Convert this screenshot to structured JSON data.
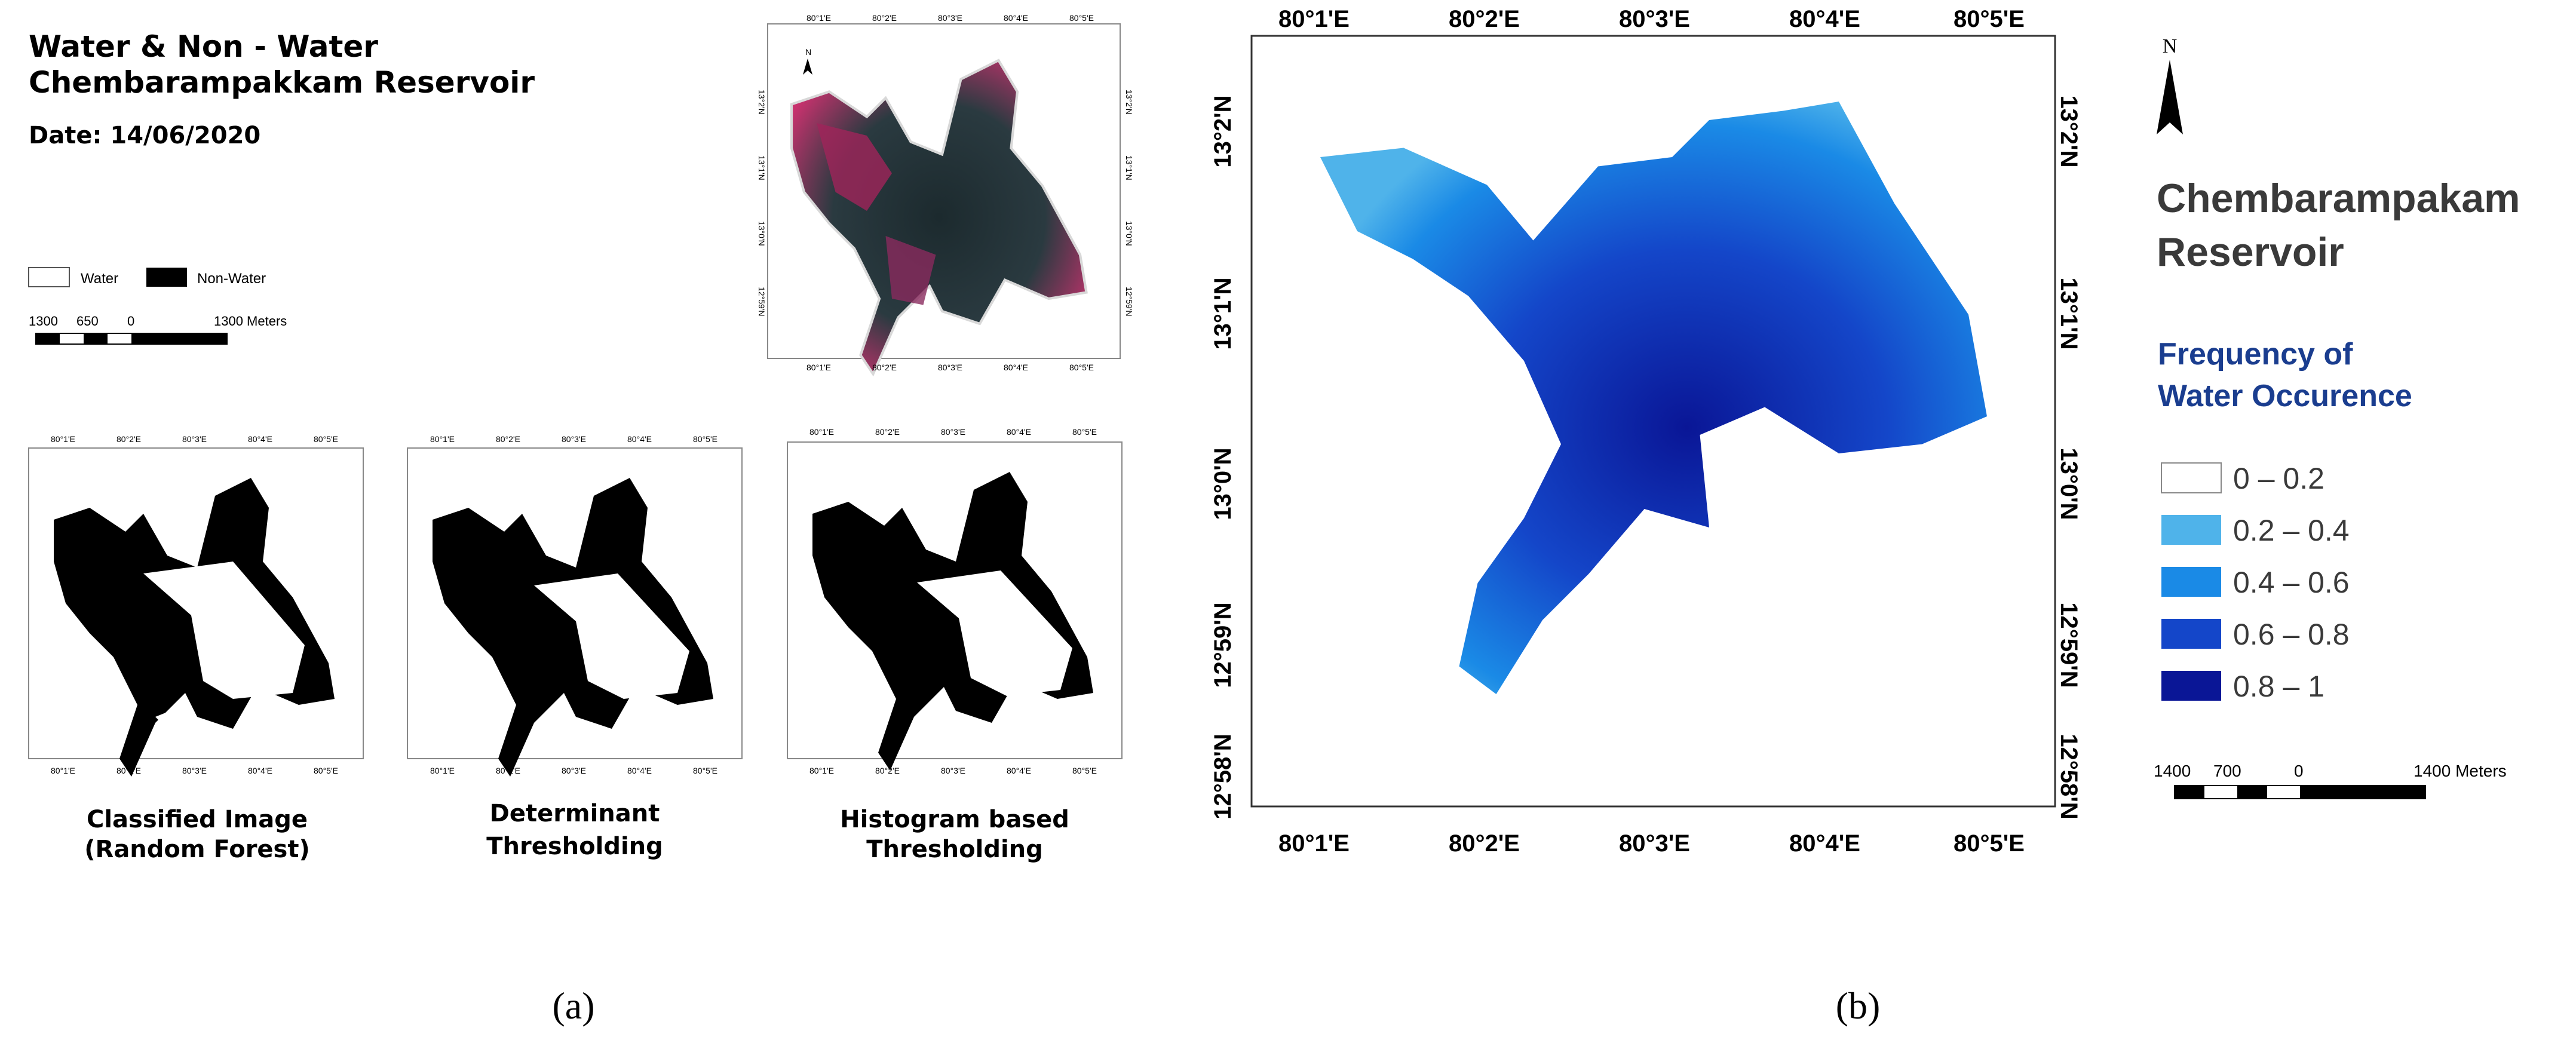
{
  "panel_a": {
    "title_line1": "Water & Non - Water",
    "title_line2": "Chembarampakkam Reservoir",
    "date": "Date: 14/06/2020",
    "legend": {
      "water": "Water",
      "non_water": "Non-Water"
    },
    "scale": {
      "l0": "1300",
      "l1": "650",
      "l2": "0",
      "l3": "1300 Meters"
    },
    "north_label": "N",
    "small_lon": [
      "80°1'E",
      "80°2'E",
      "80°3'E",
      "80°4'E",
      "80°5'E"
    ],
    "small_lat": [
      "13°2'N",
      "13°1'N",
      "13°0'N",
      "12°59'N"
    ],
    "captions": {
      "rf1": "Classified Image",
      "rf2": "(Random Forest)",
      "dt1": "Determinant",
      "dt2": "Thresholding",
      "hb1": "Histogram based",
      "hb2": "Thresholding"
    },
    "label": "(a)"
  },
  "panel_b": {
    "lon": [
      "80°1'E",
      "80°2'E",
      "80°3'E",
      "80°4'E",
      "80°5'E"
    ],
    "lat": [
      "13°2'N",
      "13°1'N",
      "13°0'N",
      "12°59'N",
      "12°58'N"
    ],
    "north_label": "N",
    "reservoir_line1": "Chembarampakam",
    "reservoir_line2": "Reservoir",
    "freq_line1": "Frequency of",
    "freq_line2": "Water Occurence",
    "classes": [
      {
        "label": "0 – 0.2",
        "color": "#ffffff"
      },
      {
        "label": "0.2 – 0.4",
        "color": "#4fb3ea"
      },
      {
        "label": "0.4 – 0.6",
        "color": "#1a8ae6"
      },
      {
        "label": "0.6 – 0.8",
        "color": "#1446c9"
      },
      {
        "label": "0.8 – 1",
        "color": "#0a1696"
      }
    ],
    "scale": {
      "l0": "1400",
      "l1": "700",
      "l2": "0",
      "l3": "1400 Meters"
    },
    "label": "(b)"
  }
}
